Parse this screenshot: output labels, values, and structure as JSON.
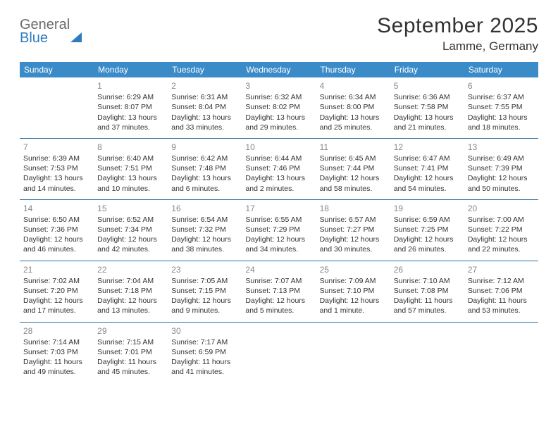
{
  "logo": {
    "word1": "General",
    "word2": "Blue"
  },
  "title": "September 2025",
  "location": "Lamme, Germany",
  "colors": {
    "header_bg": "#3b8bc9",
    "header_text": "#ffffff",
    "row_divider": "#2f6fa3",
    "daynum": "#888888",
    "body_text": "#333333",
    "logo_gray": "#6a6a6a",
    "logo_blue": "#2f7bbf",
    "page_bg": "#ffffff"
  },
  "day_headers": [
    "Sunday",
    "Monday",
    "Tuesday",
    "Wednesday",
    "Thursday",
    "Friday",
    "Saturday"
  ],
  "weeks": [
    [
      null,
      {
        "n": "1",
        "sr": "Sunrise: 6:29 AM",
        "ss": "Sunset: 8:07 PM",
        "d1": "Daylight: 13 hours",
        "d2": "and 37 minutes."
      },
      {
        "n": "2",
        "sr": "Sunrise: 6:31 AM",
        "ss": "Sunset: 8:04 PM",
        "d1": "Daylight: 13 hours",
        "d2": "and 33 minutes."
      },
      {
        "n": "3",
        "sr": "Sunrise: 6:32 AM",
        "ss": "Sunset: 8:02 PM",
        "d1": "Daylight: 13 hours",
        "d2": "and 29 minutes."
      },
      {
        "n": "4",
        "sr": "Sunrise: 6:34 AM",
        "ss": "Sunset: 8:00 PM",
        "d1": "Daylight: 13 hours",
        "d2": "and 25 minutes."
      },
      {
        "n": "5",
        "sr": "Sunrise: 6:36 AM",
        "ss": "Sunset: 7:58 PM",
        "d1": "Daylight: 13 hours",
        "d2": "and 21 minutes."
      },
      {
        "n": "6",
        "sr": "Sunrise: 6:37 AM",
        "ss": "Sunset: 7:55 PM",
        "d1": "Daylight: 13 hours",
        "d2": "and 18 minutes."
      }
    ],
    [
      {
        "n": "7",
        "sr": "Sunrise: 6:39 AM",
        "ss": "Sunset: 7:53 PM",
        "d1": "Daylight: 13 hours",
        "d2": "and 14 minutes."
      },
      {
        "n": "8",
        "sr": "Sunrise: 6:40 AM",
        "ss": "Sunset: 7:51 PM",
        "d1": "Daylight: 13 hours",
        "d2": "and 10 minutes."
      },
      {
        "n": "9",
        "sr": "Sunrise: 6:42 AM",
        "ss": "Sunset: 7:48 PM",
        "d1": "Daylight: 13 hours",
        "d2": "and 6 minutes."
      },
      {
        "n": "10",
        "sr": "Sunrise: 6:44 AM",
        "ss": "Sunset: 7:46 PM",
        "d1": "Daylight: 13 hours",
        "d2": "and 2 minutes."
      },
      {
        "n": "11",
        "sr": "Sunrise: 6:45 AM",
        "ss": "Sunset: 7:44 PM",
        "d1": "Daylight: 12 hours",
        "d2": "and 58 minutes."
      },
      {
        "n": "12",
        "sr": "Sunrise: 6:47 AM",
        "ss": "Sunset: 7:41 PM",
        "d1": "Daylight: 12 hours",
        "d2": "and 54 minutes."
      },
      {
        "n": "13",
        "sr": "Sunrise: 6:49 AM",
        "ss": "Sunset: 7:39 PM",
        "d1": "Daylight: 12 hours",
        "d2": "and 50 minutes."
      }
    ],
    [
      {
        "n": "14",
        "sr": "Sunrise: 6:50 AM",
        "ss": "Sunset: 7:36 PM",
        "d1": "Daylight: 12 hours",
        "d2": "and 46 minutes."
      },
      {
        "n": "15",
        "sr": "Sunrise: 6:52 AM",
        "ss": "Sunset: 7:34 PM",
        "d1": "Daylight: 12 hours",
        "d2": "and 42 minutes."
      },
      {
        "n": "16",
        "sr": "Sunrise: 6:54 AM",
        "ss": "Sunset: 7:32 PM",
        "d1": "Daylight: 12 hours",
        "d2": "and 38 minutes."
      },
      {
        "n": "17",
        "sr": "Sunrise: 6:55 AM",
        "ss": "Sunset: 7:29 PM",
        "d1": "Daylight: 12 hours",
        "d2": "and 34 minutes."
      },
      {
        "n": "18",
        "sr": "Sunrise: 6:57 AM",
        "ss": "Sunset: 7:27 PM",
        "d1": "Daylight: 12 hours",
        "d2": "and 30 minutes."
      },
      {
        "n": "19",
        "sr": "Sunrise: 6:59 AM",
        "ss": "Sunset: 7:25 PM",
        "d1": "Daylight: 12 hours",
        "d2": "and 26 minutes."
      },
      {
        "n": "20",
        "sr": "Sunrise: 7:00 AM",
        "ss": "Sunset: 7:22 PM",
        "d1": "Daylight: 12 hours",
        "d2": "and 22 minutes."
      }
    ],
    [
      {
        "n": "21",
        "sr": "Sunrise: 7:02 AM",
        "ss": "Sunset: 7:20 PM",
        "d1": "Daylight: 12 hours",
        "d2": "and 17 minutes."
      },
      {
        "n": "22",
        "sr": "Sunrise: 7:04 AM",
        "ss": "Sunset: 7:18 PM",
        "d1": "Daylight: 12 hours",
        "d2": "and 13 minutes."
      },
      {
        "n": "23",
        "sr": "Sunrise: 7:05 AM",
        "ss": "Sunset: 7:15 PM",
        "d1": "Daylight: 12 hours",
        "d2": "and 9 minutes."
      },
      {
        "n": "24",
        "sr": "Sunrise: 7:07 AM",
        "ss": "Sunset: 7:13 PM",
        "d1": "Daylight: 12 hours",
        "d2": "and 5 minutes."
      },
      {
        "n": "25",
        "sr": "Sunrise: 7:09 AM",
        "ss": "Sunset: 7:10 PM",
        "d1": "Daylight: 12 hours",
        "d2": "and 1 minute."
      },
      {
        "n": "26",
        "sr": "Sunrise: 7:10 AM",
        "ss": "Sunset: 7:08 PM",
        "d1": "Daylight: 11 hours",
        "d2": "and 57 minutes."
      },
      {
        "n": "27",
        "sr": "Sunrise: 7:12 AM",
        "ss": "Sunset: 7:06 PM",
        "d1": "Daylight: 11 hours",
        "d2": "and 53 minutes."
      }
    ],
    [
      {
        "n": "28",
        "sr": "Sunrise: 7:14 AM",
        "ss": "Sunset: 7:03 PM",
        "d1": "Daylight: 11 hours",
        "d2": "and 49 minutes."
      },
      {
        "n": "29",
        "sr": "Sunrise: 7:15 AM",
        "ss": "Sunset: 7:01 PM",
        "d1": "Daylight: 11 hours",
        "d2": "and 45 minutes."
      },
      {
        "n": "30",
        "sr": "Sunrise: 7:17 AM",
        "ss": "Sunset: 6:59 PM",
        "d1": "Daylight: 11 hours",
        "d2": "and 41 minutes."
      },
      null,
      null,
      null,
      null
    ]
  ]
}
